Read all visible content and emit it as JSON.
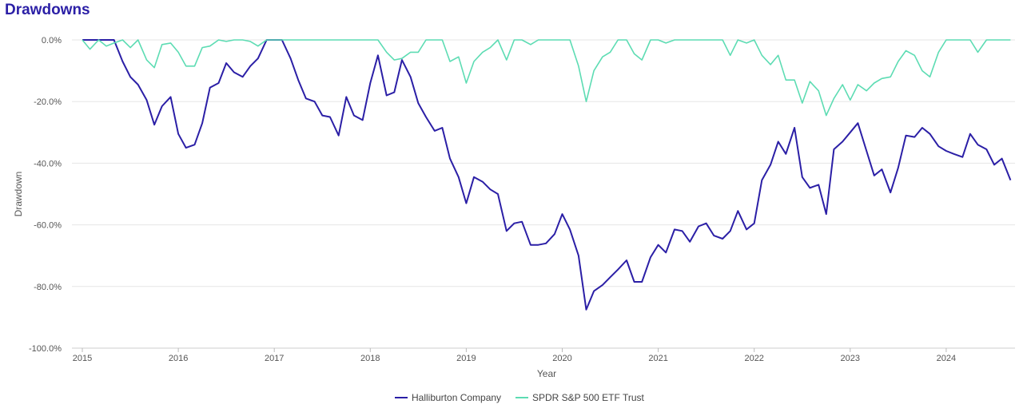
{
  "chart_data": {
    "type": "line",
    "title": "Drawdowns",
    "xlabel": "Year",
    "ylabel": "Drawdown",
    "xlim": [
      2015.0,
      2024.75
    ],
    "ylim": [
      -100,
      0
    ],
    "x_ticks": [
      "2015",
      "2016",
      "2017",
      "2018",
      "2019",
      "2020",
      "2021",
      "2022",
      "2023",
      "2024"
    ],
    "y_ticks": [
      "0.0%",
      "-20.0%",
      "-40.0%",
      "-60.0%",
      "-80.0%",
      "-100.0%"
    ],
    "y_tick_values": [
      0,
      -20,
      -40,
      -60,
      -80,
      -100
    ],
    "grid": true,
    "legend_position": "bottom-center",
    "series": [
      {
        "name": "Halliburton Company",
        "color": "#2b1fa6",
        "points": [
          [
            2015.0,
            0
          ],
          [
            2015.08,
            0
          ],
          [
            2015.17,
            0
          ],
          [
            2015.25,
            0
          ],
          [
            2015.33,
            0
          ],
          [
            2015.42,
            -7
          ],
          [
            2015.5,
            -12
          ],
          [
            2015.58,
            -14.5
          ],
          [
            2015.67,
            -19.5
          ],
          [
            2015.75,
            -27.5
          ],
          [
            2015.83,
            -21.5
          ],
          [
            2015.92,
            -18.5
          ],
          [
            2016.0,
            -30.5
          ],
          [
            2016.08,
            -35
          ],
          [
            2016.17,
            -34
          ],
          [
            2016.25,
            -27
          ],
          [
            2016.33,
            -15.5
          ],
          [
            2016.42,
            -14
          ],
          [
            2016.5,
            -7.5
          ],
          [
            2016.58,
            -10.5
          ],
          [
            2016.67,
            -12
          ],
          [
            2016.75,
            -8.5
          ],
          [
            2016.83,
            -6
          ],
          [
            2016.92,
            0
          ],
          [
            2017.0,
            0
          ],
          [
            2017.08,
            0
          ],
          [
            2017.17,
            -6
          ],
          [
            2017.25,
            -13
          ],
          [
            2017.33,
            -19
          ],
          [
            2017.42,
            -20
          ],
          [
            2017.5,
            -24.5
          ],
          [
            2017.58,
            -25
          ],
          [
            2017.67,
            -31
          ],
          [
            2017.75,
            -18.5
          ],
          [
            2017.83,
            -24.5
          ],
          [
            2017.92,
            -26
          ],
          [
            2018.0,
            -14
          ],
          [
            2018.08,
            -5
          ],
          [
            2018.17,
            -18
          ],
          [
            2018.25,
            -17
          ],
          [
            2018.33,
            -6.5
          ],
          [
            2018.42,
            -12
          ],
          [
            2018.5,
            -20.5
          ],
          [
            2018.58,
            -25
          ],
          [
            2018.67,
            -29.5
          ],
          [
            2018.75,
            -28.5
          ],
          [
            2018.83,
            -38.5
          ],
          [
            2018.92,
            -44.5
          ],
          [
            2019.0,
            -53
          ],
          [
            2019.08,
            -44.5
          ],
          [
            2019.17,
            -46
          ],
          [
            2019.25,
            -48.5
          ],
          [
            2019.33,
            -50
          ],
          [
            2019.42,
            -62
          ],
          [
            2019.5,
            -59.5
          ],
          [
            2019.58,
            -59
          ],
          [
            2019.67,
            -66.5
          ],
          [
            2019.75,
            -66.5
          ],
          [
            2019.83,
            -66
          ],
          [
            2019.92,
            -63
          ],
          [
            2020.0,
            -56.5
          ],
          [
            2020.08,
            -61.5
          ],
          [
            2020.17,
            -70
          ],
          [
            2020.25,
            -87.5
          ],
          [
            2020.33,
            -81.5
          ],
          [
            2020.42,
            -79.5
          ],
          [
            2020.5,
            -77
          ],
          [
            2020.58,
            -74.5
          ],
          [
            2020.67,
            -71.5
          ],
          [
            2020.75,
            -78.5
          ],
          [
            2020.83,
            -78.5
          ],
          [
            2020.92,
            -70.5
          ],
          [
            2021.0,
            -66.5
          ],
          [
            2021.08,
            -69
          ],
          [
            2021.17,
            -61.5
          ],
          [
            2021.25,
            -62
          ],
          [
            2021.33,
            -65.5
          ],
          [
            2021.42,
            -60.5
          ],
          [
            2021.5,
            -59.5
          ],
          [
            2021.58,
            -63.5
          ],
          [
            2021.67,
            -64.5
          ],
          [
            2021.75,
            -62
          ],
          [
            2021.83,
            -55.5
          ],
          [
            2021.92,
            -61.5
          ],
          [
            2022.0,
            -59.5
          ],
          [
            2022.08,
            -45.5
          ],
          [
            2022.17,
            -40.5
          ],
          [
            2022.25,
            -33
          ],
          [
            2022.33,
            -37
          ],
          [
            2022.42,
            -28.5
          ],
          [
            2022.5,
            -44.5
          ],
          [
            2022.58,
            -48
          ],
          [
            2022.67,
            -47
          ],
          [
            2022.75,
            -56.5
          ],
          [
            2022.83,
            -35.5
          ],
          [
            2022.92,
            -33
          ],
          [
            2023.0,
            -30
          ],
          [
            2023.08,
            -27
          ],
          [
            2023.17,
            -36
          ],
          [
            2023.25,
            -44
          ],
          [
            2023.33,
            -42
          ],
          [
            2023.42,
            -49.5
          ],
          [
            2023.5,
            -41.5
          ],
          [
            2023.58,
            -31
          ],
          [
            2023.67,
            -31.5
          ],
          [
            2023.75,
            -28.5
          ],
          [
            2023.83,
            -30.5
          ],
          [
            2023.92,
            -34.5
          ],
          [
            2024.0,
            -36
          ],
          [
            2024.08,
            -37
          ],
          [
            2024.17,
            -38
          ],
          [
            2024.25,
            -30.5
          ],
          [
            2024.33,
            -34
          ],
          [
            2024.42,
            -35.5
          ],
          [
            2024.5,
            -40.5
          ],
          [
            2024.58,
            -38.5
          ],
          [
            2024.67,
            -45.5
          ]
        ]
      },
      {
        "name": "SPDR S&P 500 ETF Trust",
        "color": "#5ddcb3",
        "points": [
          [
            2015.0,
            0
          ],
          [
            2015.08,
            -3
          ],
          [
            2015.17,
            0
          ],
          [
            2015.25,
            -2
          ],
          [
            2015.33,
            -1
          ],
          [
            2015.42,
            0
          ],
          [
            2015.5,
            -2.5
          ],
          [
            2015.58,
            0
          ],
          [
            2015.67,
            -6.5
          ],
          [
            2015.75,
            -9
          ],
          [
            2015.83,
            -1.5
          ],
          [
            2015.92,
            -1
          ],
          [
            2016.0,
            -4
          ],
          [
            2016.08,
            -8.5
          ],
          [
            2016.17,
            -8.5
          ],
          [
            2016.25,
            -2.5
          ],
          [
            2016.33,
            -2
          ],
          [
            2016.42,
            0
          ],
          [
            2016.5,
            -0.5
          ],
          [
            2016.58,
            0
          ],
          [
            2016.67,
            0
          ],
          [
            2016.75,
            -0.5
          ],
          [
            2016.83,
            -2
          ],
          [
            2016.92,
            0
          ],
          [
            2017.0,
            0
          ],
          [
            2017.25,
            0
          ],
          [
            2017.5,
            0
          ],
          [
            2017.75,
            0
          ],
          [
            2018.0,
            0
          ],
          [
            2018.08,
            0
          ],
          [
            2018.17,
            -4
          ],
          [
            2018.25,
            -6.5
          ],
          [
            2018.33,
            -6
          ],
          [
            2018.42,
            -4
          ],
          [
            2018.5,
            -4
          ],
          [
            2018.58,
            0
          ],
          [
            2018.67,
            0
          ],
          [
            2018.75,
            0
          ],
          [
            2018.83,
            -7
          ],
          [
            2018.92,
            -5.5
          ],
          [
            2019.0,
            -14
          ],
          [
            2019.08,
            -7
          ],
          [
            2019.17,
            -4
          ],
          [
            2019.25,
            -2.5
          ],
          [
            2019.33,
            0
          ],
          [
            2019.42,
            -6.5
          ],
          [
            2019.5,
            0
          ],
          [
            2019.58,
            0
          ],
          [
            2019.67,
            -1.5
          ],
          [
            2019.75,
            0
          ],
          [
            2019.83,
            0
          ],
          [
            2019.92,
            0
          ],
          [
            2020.0,
            0
          ],
          [
            2020.08,
            0
          ],
          [
            2020.17,
            -8.5
          ],
          [
            2020.25,
            -20
          ],
          [
            2020.33,
            -10
          ],
          [
            2020.42,
            -5.5
          ],
          [
            2020.5,
            -4
          ],
          [
            2020.58,
            0
          ],
          [
            2020.67,
            0
          ],
          [
            2020.75,
            -4.5
          ],
          [
            2020.83,
            -6.5
          ],
          [
            2020.92,
            0
          ],
          [
            2021.0,
            0
          ],
          [
            2021.08,
            -1
          ],
          [
            2021.17,
            0
          ],
          [
            2021.25,
            0
          ],
          [
            2021.5,
            0
          ],
          [
            2021.67,
            0
          ],
          [
            2021.75,
            -5
          ],
          [
            2021.83,
            0
          ],
          [
            2021.92,
            -1
          ],
          [
            2022.0,
            0
          ],
          [
            2022.08,
            -5
          ],
          [
            2022.17,
            -8
          ],
          [
            2022.25,
            -5
          ],
          [
            2022.33,
            -13
          ],
          [
            2022.42,
            -13
          ],
          [
            2022.5,
            -20.5
          ],
          [
            2022.58,
            -13.5
          ],
          [
            2022.67,
            -16.5
          ],
          [
            2022.75,
            -24.5
          ],
          [
            2022.83,
            -19
          ],
          [
            2022.92,
            -14.5
          ],
          [
            2023.0,
            -19.5
          ],
          [
            2023.08,
            -14.5
          ],
          [
            2023.17,
            -16.5
          ],
          [
            2023.25,
            -14
          ],
          [
            2023.33,
            -12.5
          ],
          [
            2023.42,
            -12
          ],
          [
            2023.5,
            -7
          ],
          [
            2023.58,
            -3.5
          ],
          [
            2023.67,
            -5
          ],
          [
            2023.75,
            -10
          ],
          [
            2023.83,
            -12
          ],
          [
            2023.92,
            -4
          ],
          [
            2024.0,
            0
          ],
          [
            2024.08,
            0
          ],
          [
            2024.17,
            0
          ],
          [
            2024.25,
            0
          ],
          [
            2024.33,
            -4
          ],
          [
            2024.42,
            0
          ],
          [
            2024.5,
            0
          ],
          [
            2024.58,
            0
          ],
          [
            2024.67,
            0
          ]
        ]
      }
    ]
  }
}
